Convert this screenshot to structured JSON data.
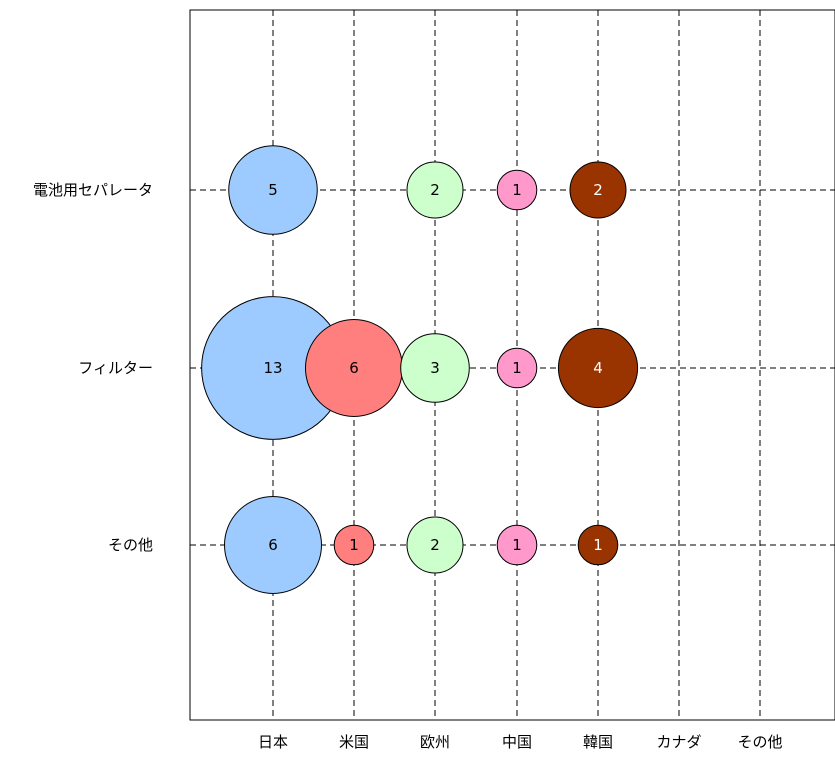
{
  "chart_data": {
    "type": "scatter",
    "subtype": "bubble",
    "categories_x": [
      "日本",
      "米国",
      "欧州",
      "中国",
      "韓国",
      "カナダ",
      "その他"
    ],
    "categories_y": [
      "電池用セパレータ",
      "フィルター",
      "その他"
    ],
    "series": [
      {
        "category": "日本",
        "color": "#9ecbff",
        "values": [
          5,
          13,
          6
        ]
      },
      {
        "category": "米国",
        "color": "#ff7f7f",
        "values": [
          null,
          6,
          1
        ]
      },
      {
        "category": "欧州",
        "color": "#ccffcc",
        "values": [
          2,
          3,
          2
        ]
      },
      {
        "category": "中国",
        "color": "#ff99cc",
        "values": [
          1,
          1,
          1
        ]
      },
      {
        "category": "韓国",
        "color": "#993300",
        "values": [
          2,
          4,
          1
        ]
      },
      {
        "category": "カナダ",
        "color": "#cccccc",
        "values": [
          null,
          null,
          null
        ]
      },
      {
        "category": "その他",
        "color": "#cccccc",
        "values": [
          null,
          null,
          null
        ]
      }
    ],
    "grid": true,
    "grid_style": "dashed",
    "legend": "none",
    "dark_label_color": "#ffffff",
    "light_label_color": "#000000"
  }
}
